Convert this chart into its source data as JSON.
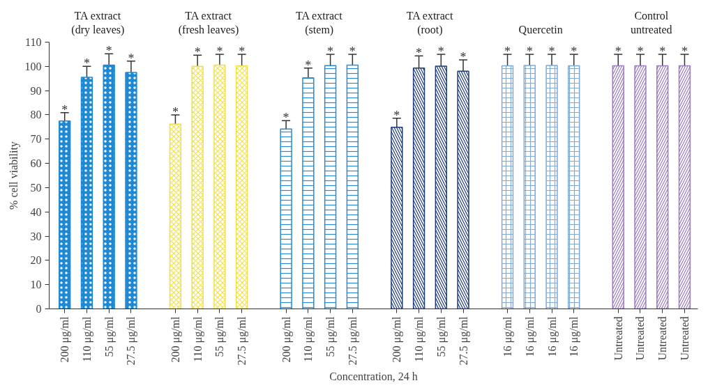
{
  "chart_data": {
    "type": "bar",
    "xlabel": "Concentration, 24 h",
    "ylabel": "% cell viability",
    "categories": [
      "200 μg/ml",
      "110 μg/ml",
      "55 μg/ml",
      "27.5 μg/ml",
      null,
      "200 μg/ml",
      "110 μg/ml",
      "55 μg/ml",
      "27.5 μg/ml",
      null,
      "200 μg/ml",
      "110 μg/ml",
      "55 μg/ml",
      "27.5 μg/ml",
      null,
      "200 μg/ml",
      "110 μg/ml",
      "55 μg/ml",
      "27.5 μg/ml",
      null,
      "16 μg/ml",
      "16 μg/ml",
      "16 μg/ml",
      "16 μg/ml",
      null,
      "Untreated",
      "Untreated",
      "Untreated",
      "Untreated"
    ],
    "ylim": [
      0,
      110
    ],
    "yticks": [
      0,
      10,
      20,
      30,
      40,
      50,
      60,
      70,
      80,
      90,
      100,
      110
    ],
    "grid": false,
    "series": [
      {
        "name": "TA extract\n(dry leaves)",
        "color": "#1f88d2",
        "values": [
          77.5,
          95.5,
          100.5,
          97.5,
          null,
          null,
          null,
          null,
          null,
          null,
          null,
          null,
          null,
          null,
          null,
          null,
          null,
          null,
          null,
          null,
          null,
          null,
          null,
          null,
          null,
          null,
          null,
          null,
          null
        ],
        "errors": [
          [
            77.5,
            80.9
          ],
          [
            95.5,
            100
          ],
          [
            100.5,
            105.2
          ],
          [
            97.5,
            102.2
          ],
          null,
          null,
          null,
          null,
          null,
          null,
          null,
          null,
          null,
          null,
          null,
          null,
          null,
          null,
          null,
          null,
          null,
          null,
          null,
          null,
          null,
          null,
          null,
          null,
          null
        ],
        "value_labels": [
          "*",
          "*",
          "*",
          "*",
          null,
          null,
          null,
          null,
          null,
          null,
          null,
          null,
          null,
          null,
          null,
          null,
          null,
          null,
          null,
          null,
          null,
          null,
          null,
          null,
          null,
          null,
          null,
          null,
          null
        ]
      },
      {
        "name": "TA extract\n(fresh leaves)",
        "color": "#f2e04a",
        "values": [
          null,
          null,
          null,
          null,
          null,
          76.2,
          100,
          100.5,
          100.2,
          null,
          null,
          null,
          null,
          null,
          null,
          null,
          null,
          null,
          null,
          null,
          null,
          null,
          null,
          null,
          null,
          null,
          null,
          null,
          null
        ],
        "errors": [
          null,
          null,
          null,
          null,
          null,
          [
            76.2,
            80
          ],
          [
            100,
            104.6
          ],
          [
            100.5,
            105
          ],
          [
            100.2,
            105
          ],
          null,
          null,
          null,
          null,
          null,
          null,
          null,
          null,
          null,
          null,
          null,
          null,
          null,
          null,
          null,
          null,
          null,
          null,
          null,
          null
        ],
        "value_labels": [
          null,
          null,
          null,
          null,
          null,
          "*",
          "*",
          "*",
          "*",
          null,
          null,
          null,
          null,
          null,
          null,
          null,
          null,
          null,
          null,
          null,
          null,
          null,
          null,
          null,
          null,
          null,
          null,
          null,
          null
        ]
      },
      {
        "name": "TA extract\n(stem)",
        "color": "#2a8bd3",
        "values": [
          null,
          null,
          null,
          null,
          null,
          null,
          null,
          null,
          null,
          null,
          74.2,
          95.3,
          100.3,
          100.5,
          null,
          null,
          null,
          null,
          null,
          null,
          null,
          null,
          null,
          null,
          null,
          null,
          null,
          null,
          null
        ],
        "errors": [
          null,
          null,
          null,
          null,
          null,
          null,
          null,
          null,
          null,
          null,
          [
            74.2,
            77.6
          ],
          [
            95.3,
            99.3
          ],
          [
            100.3,
            105
          ],
          [
            100.5,
            105
          ],
          null,
          null,
          null,
          null,
          null,
          null,
          null,
          null,
          null,
          null,
          null,
          null,
          null,
          null,
          null
        ],
        "value_labels": [
          null,
          null,
          null,
          null,
          null,
          null,
          null,
          null,
          null,
          null,
          "*",
          "*",
          "*",
          "*",
          null,
          null,
          null,
          null,
          null,
          null,
          null,
          null,
          null,
          null,
          null,
          null,
          null,
          null,
          null
        ]
      },
      {
        "name": "TA extract\n(root)",
        "color": "#1f3a7a",
        "values": [
          null,
          null,
          null,
          null,
          null,
          null,
          null,
          null,
          null,
          null,
          null,
          null,
          null,
          null,
          null,
          74.9,
          99.3,
          100.1,
          98,
          null,
          null,
          null,
          null,
          null,
          null,
          null,
          null,
          null,
          null
        ],
        "errors": [
          null,
          null,
          null,
          null,
          null,
          null,
          null,
          null,
          null,
          null,
          null,
          null,
          null,
          null,
          null,
          [
            74.9,
            78.6
          ],
          [
            99.3,
            104.3
          ],
          [
            100.1,
            105
          ],
          [
            98,
            102.7
          ],
          null,
          null,
          null,
          null,
          null,
          null,
          null,
          null,
          null,
          null
        ],
        "value_labels": [
          null,
          null,
          null,
          null,
          null,
          null,
          null,
          null,
          null,
          null,
          null,
          null,
          null,
          null,
          null,
          "*",
          "*",
          "*",
          "*",
          null,
          null,
          null,
          null,
          null,
          null,
          null,
          null,
          null,
          null
        ]
      },
      {
        "name": "Quercetin",
        "color": "#7fa9d6",
        "values": [
          null,
          null,
          null,
          null,
          null,
          null,
          null,
          null,
          null,
          null,
          null,
          null,
          null,
          null,
          null,
          null,
          null,
          null,
          null,
          null,
          100.2,
          100.4,
          100.4,
          100.2,
          null,
          null,
          null,
          null,
          null
        ],
        "errors": [
          null,
          null,
          null,
          null,
          null,
          null,
          null,
          null,
          null,
          null,
          null,
          null,
          null,
          null,
          null,
          null,
          null,
          null,
          null,
          null,
          [
            100.2,
            105
          ],
          [
            100.4,
            105
          ],
          [
            100.4,
            105
          ],
          [
            100.2,
            105
          ],
          null,
          null,
          null,
          null,
          null
        ],
        "value_labels": [
          null,
          null,
          null,
          null,
          null,
          null,
          null,
          null,
          null,
          null,
          null,
          null,
          null,
          null,
          null,
          null,
          null,
          null,
          null,
          null,
          "*",
          "*",
          "*",
          "*",
          null,
          null,
          null,
          null,
          null
        ]
      },
      {
        "name": "Control\nuntreated",
        "color": "#9b7bbf",
        "values": [
          null,
          null,
          null,
          null,
          null,
          null,
          null,
          null,
          null,
          null,
          null,
          null,
          null,
          null,
          null,
          null,
          null,
          null,
          null,
          null,
          null,
          null,
          null,
          null,
          null,
          100.2,
          100.2,
          100.2,
          100.2
        ],
        "errors": [
          null,
          null,
          null,
          null,
          null,
          null,
          null,
          null,
          null,
          null,
          null,
          null,
          null,
          null,
          null,
          null,
          null,
          null,
          null,
          null,
          null,
          null,
          null,
          null,
          null,
          [
            100.2,
            105
          ],
          [
            100.2,
            105
          ],
          [
            100.2,
            105
          ],
          [
            100.2,
            105
          ]
        ],
        "value_labels": [
          null,
          null,
          null,
          null,
          null,
          null,
          null,
          null,
          null,
          null,
          null,
          null,
          null,
          null,
          null,
          null,
          null,
          null,
          null,
          null,
          null,
          null,
          null,
          null,
          null,
          "*",
          "*",
          "*",
          "*"
        ]
      }
    ]
  }
}
